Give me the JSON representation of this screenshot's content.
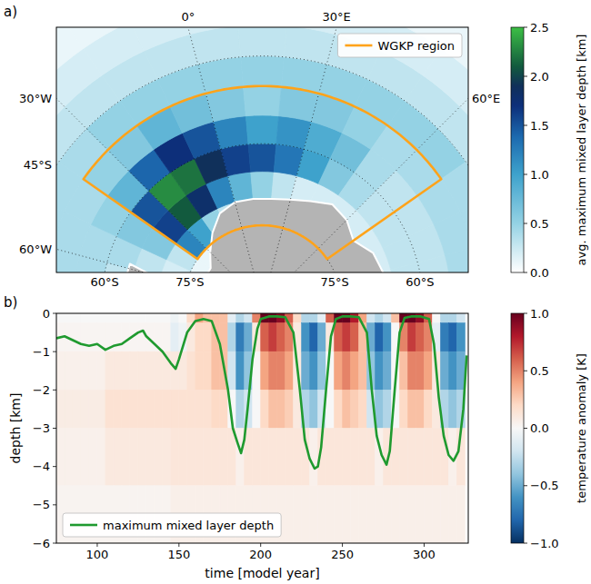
{
  "chart_data": [
    {
      "type": "map",
      "panel_label": "a)",
      "lon_ticks": [
        {
          "value": -60,
          "label": "60°W"
        },
        {
          "value": -30,
          "label": "30°W"
        },
        {
          "value": 0,
          "label": "0°"
        },
        {
          "value": 30,
          "label": "30°E"
        },
        {
          "value": 60,
          "label": "60°E"
        }
      ],
      "lat_ticks": [
        {
          "value": -45,
          "label": "45°S"
        },
        {
          "value": -60,
          "label": "60°S"
        },
        {
          "value": -75,
          "label": "75°S"
        }
      ],
      "region": {
        "name": "WGKP region",
        "color": "#ffa31a",
        "lon": [
          -40,
          70
        ],
        "lat": [
          -75,
          -50
        ]
      },
      "legend": "upper right",
      "coastline": {
        "lon": [
          -90,
          -80,
          -70,
          -65,
          -62,
          -58,
          -60,
          -62,
          -60,
          -50,
          -40,
          -30,
          -20,
          -10,
          0,
          10,
          20,
          30,
          40,
          50,
          60,
          70,
          80,
          90,
          100,
          110
        ],
        "lat": [
          -73,
          -73,
          -72,
          -68,
          -64,
          -64,
          -68,
          -73,
          -75,
          -78,
          -78,
          -76,
          -73.5,
          -71,
          -70,
          -70,
          -70,
          -69.5,
          -68.5,
          -67,
          -67.5,
          -69,
          -67,
          -66.5,
          -66,
          -66
        ]
      },
      "cells": {
        "lon_edges": [
          -70,
          -60,
          -50,
          -40,
          -30,
          -20,
          -10,
          0,
          10,
          20,
          30,
          40,
          50,
          60,
          70,
          80,
          90,
          100
        ],
        "lat_edges": [
          -85,
          -80,
          -75,
          -70,
          -65,
          -60,
          -55,
          -50,
          -45,
          -40,
          -35,
          -30,
          -25
        ],
        "values": [
          [
            0,
            0,
            0,
            0,
            0,
            0,
            0,
            0,
            0,
            0,
            0,
            0,
            0,
            0,
            0,
            0,
            0
          ],
          [
            0.1,
            0.1,
            0.1,
            0.1,
            0.1,
            0.1,
            0.1,
            0.1,
            0.1,
            0.1,
            0.1,
            0.1,
            0.1,
            0.1,
            0.1,
            0.1,
            0.1
          ],
          [
            0.2,
            0.2,
            0.3,
            1.2,
            1.0,
            0.5,
            0.3,
            0.2,
            0.1,
            0.1,
            0.1,
            0.1,
            0.1,
            0.1,
            0.1,
            0.1,
            0.1
          ],
          [
            0.3,
            0.3,
            0.6,
            1.6,
            2.1,
            1.8,
            1.2,
            0.8,
            0.5,
            0.3,
            0.2,
            0.2,
            0.2,
            0.2,
            0.2,
            0.2,
            0.2
          ],
          [
            0.3,
            0.4,
            0.6,
            1.5,
            2.3,
            2.2,
            1.9,
            1.6,
            1.5,
            1.3,
            1.0,
            0.6,
            0.4,
            0.3,
            0.3,
            0.3,
            0.3
          ],
          [
            0.4,
            0.4,
            0.5,
            0.8,
            1.4,
            1.7,
            1.5,
            1.2,
            1.0,
            1.1,
            0.9,
            0.7,
            0.4,
            0.3,
            0.3,
            0.3,
            0.3
          ],
          [
            0.4,
            0.4,
            0.4,
            0.5,
            0.6,
            0.8,
            0.7,
            0.6,
            0.5,
            0.6,
            0.6,
            0.5,
            0.4,
            0.4,
            0.4,
            0.4,
            0.4
          ],
          [
            0.4,
            0.4,
            0.4,
            0.4,
            0.5,
            0.5,
            0.5,
            0.5,
            0.5,
            0.5,
            0.5,
            0.5,
            0.5,
            0.5,
            0.4,
            0.4,
            0.4
          ],
          [
            0.3,
            0.3,
            0.3,
            0.3,
            0.3,
            0.3,
            0.3,
            0.3,
            0.3,
            0.3,
            0.3,
            0.3,
            0.3,
            0.3,
            0.3,
            0.3,
            0.3
          ],
          [
            0.2,
            0.2,
            0.2,
            0.2,
            0.2,
            0.2,
            0.2,
            0.2,
            0.2,
            0.2,
            0.2,
            0.2,
            0.2,
            0.2,
            0.2,
            0.2,
            0.2
          ],
          [
            0.1,
            0.1,
            0.1,
            0.1,
            0.1,
            0.1,
            0.1,
            0.1,
            0.1,
            0.1,
            0.1,
            0.1,
            0.1,
            0.1,
            0.1,
            0.1,
            0.1
          ],
          [
            0.1,
            0.1,
            0.1,
            0.1,
            0.1,
            0.1,
            0.1,
            0.1,
            0.1,
            0.1,
            0.1,
            0.1,
            0.1,
            0.1,
            0.1,
            0.1,
            0.1
          ]
        ]
      },
      "colorbar": {
        "label": "avg. maximum mixed layer depth [km]",
        "range": [
          0,
          2.5
        ],
        "ticks": [
          {
            "value": 0,
            "label": "0.0"
          },
          {
            "value": 0.5,
            "label": "0.5"
          },
          {
            "value": 1,
            "label": "1.0"
          },
          {
            "value": 1.5,
            "label": "1.5"
          },
          {
            "value": 2,
            "label": "2.0"
          },
          {
            "value": 2.5,
            "label": "2.5"
          }
        ]
      }
    },
    {
      "type": "heatmap",
      "panel_label": "b)",
      "x_label": "time [model year]",
      "y_label": "depth [km]",
      "xlim": [
        75,
        327
      ],
      "xticks": [
        100,
        150,
        200,
        250,
        300
      ],
      "ylim": [
        -6,
        0
      ],
      "yticks": [
        {
          "value": 0,
          "label": "0"
        },
        {
          "value": -1,
          "label": "−1"
        },
        {
          "value": -2,
          "label": "−2"
        },
        {
          "value": -3,
          "label": "−3"
        },
        {
          "value": -4,
          "label": "−4"
        },
        {
          "value": -5,
          "label": "−5"
        },
        {
          "value": -6,
          "label": "−6"
        }
      ],
      "cells": {
        "x_edges": [
          75,
          80,
          85,
          90,
          95,
          100,
          105,
          110,
          115,
          120,
          125,
          130,
          135,
          140,
          145,
          150,
          155,
          160,
          165,
          170,
          175,
          180,
          185,
          190,
          195,
          200,
          205,
          210,
          215,
          220,
          225,
          230,
          235,
          240,
          245,
          250,
          255,
          260,
          265,
          270,
          275,
          280,
          285,
          290,
          295,
          300,
          305,
          310,
          315,
          320,
          325
        ],
        "y_edges": [
          0,
          -0.25,
          -1,
          -2,
          -3,
          -4.5,
          -6
        ],
        "values": [
          [
            0,
            0,
            0,
            0,
            0,
            0,
            0,
            0,
            0,
            0,
            0,
            0,
            0,
            0,
            -0.05,
            0,
            0.2,
            0.4,
            0.3,
            0.3,
            0.3,
            -0.1,
            -0.3,
            -0.2,
            0.5,
            1.0,
            1.0,
            0.9,
            0.6,
            0.2,
            -0.3,
            -0.3,
            -0.1,
            0.6,
            1.0,
            1.0,
            0.8,
            0.4,
            -0.2,
            -0.3,
            -0.2,
            0.3,
            1.0,
            1.0,
            0.9,
            0.6,
            0.0,
            -0.3,
            -0.3,
            -0.2
          ],
          [
            0.02,
            0.02,
            0.02,
            0.02,
            0.02,
            0.02,
            0.02,
            0.02,
            0.02,
            0.02,
            0.02,
            0.02,
            0.02,
            0.02,
            -0.1,
            -0.05,
            0.1,
            0.2,
            0.2,
            0.3,
            0.3,
            -0.3,
            -0.7,
            -0.5,
            0.1,
            0.6,
            0.7,
            0.6,
            0.5,
            0.1,
            -0.6,
            -0.8,
            -0.5,
            0.1,
            0.6,
            0.7,
            0.6,
            0.3,
            -0.5,
            -0.8,
            -0.6,
            0.0,
            0.5,
            0.7,
            0.6,
            0.5,
            -0.1,
            -0.7,
            -0.8,
            -0.6
          ],
          [
            0.05,
            0.05,
            0.05,
            0.05,
            0.05,
            0.05,
            0.1,
            0.1,
            0.1,
            0.1,
            0.1,
            0.1,
            0.1,
            0.1,
            0.1,
            0.1,
            0.15,
            0.2,
            0.2,
            0.3,
            0.3,
            -0.2,
            -0.6,
            -0.4,
            0.0,
            0.4,
            0.5,
            0.5,
            0.4,
            0.1,
            -0.5,
            -0.6,
            -0.4,
            0.0,
            0.4,
            0.5,
            0.4,
            0.3,
            -0.4,
            -0.6,
            -0.5,
            0.0,
            0.3,
            0.5,
            0.5,
            0.4,
            0.1,
            -0.5,
            -0.6,
            -0.5
          ],
          [
            0.08,
            0.08,
            0.08,
            0.08,
            0.08,
            0.08,
            0.15,
            0.15,
            0.15,
            0.15,
            0.15,
            0.15,
            0.15,
            0.15,
            0.15,
            0.15,
            0.15,
            0.15,
            0.15,
            0.2,
            0.2,
            0.0,
            -0.3,
            -0.2,
            0.0,
            0.2,
            0.3,
            0.3,
            0.25,
            0.1,
            -0.3,
            -0.4,
            -0.2,
            0.0,
            0.2,
            0.3,
            0.25,
            0.2,
            -0.2,
            -0.4,
            -0.3,
            0.0,
            0.2,
            0.3,
            0.3,
            0.2,
            0.1,
            -0.3,
            -0.4,
            -0.3
          ],
          [
            0.05,
            0.05,
            0.05,
            0.05,
            0.05,
            0.05,
            0.1,
            0.1,
            0.1,
            0.1,
            0.1,
            0.1,
            0.1,
            0.1,
            0.12,
            0.12,
            0.12,
            0.12,
            0.12,
            0.12,
            0.12,
            0.12,
            0.05,
            0.12,
            0.12,
            0.12,
            0.12,
            0.12,
            0.12,
            0.12,
            0.12,
            0.05,
            0.12,
            0.12,
            0.12,
            0.12,
            0.12,
            0.12,
            0.12,
            0.05,
            0.12,
            0.12,
            0.12,
            0.12,
            0.12,
            0.12,
            0.12,
            0.12,
            0.05,
            0.12
          ],
          [
            0.03,
            0.03,
            0.03,
            0.03,
            0.03,
            0.03,
            0.03,
            0.03,
            0.03,
            0.03,
            0.03,
            0.03,
            0.03,
            0.03,
            0.06,
            0.06,
            0.06,
            0.06,
            0.06,
            0.06,
            0.06,
            0.06,
            0.06,
            0.06,
            0.06,
            0.06,
            0.06,
            0.06,
            0.06,
            0.06,
            0.06,
            0.06,
            0.06,
            0.06,
            0.06,
            0.06,
            0.06,
            0.06,
            0.06,
            0.06,
            0.06,
            0.06,
            0.06,
            0.06,
            0.06,
            0.06,
            0.06,
            0.06,
            0.06,
            0.06
          ]
        ]
      },
      "colorbar": {
        "label": "temperature anomaly [K]",
        "range": [
          -1,
          1
        ],
        "ticks": [
          {
            "value": -1,
            "label": "−1.0"
          },
          {
            "value": -0.5,
            "label": "−0.5"
          },
          {
            "value": 0,
            "label": "0.0"
          },
          {
            "value": 0.5,
            "label": "0.5"
          },
          {
            "value": 1,
            "label": "1.0"
          }
        ]
      },
      "series": [
        {
          "name": "maximum mixed layer depth",
          "type": "line",
          "color": "#1f9a2f",
          "x": [
            75,
            80,
            85,
            90,
            95,
            100,
            105,
            110,
            115,
            120,
            125,
            128,
            130,
            135,
            140,
            145,
            148,
            150,
            155,
            160,
            165,
            170,
            175,
            180,
            183,
            186,
            188,
            190,
            192,
            195,
            198,
            200,
            205,
            210,
            215,
            220,
            224,
            227,
            230,
            233,
            235,
            237,
            240,
            243,
            246,
            250,
            255,
            260,
            265,
            268,
            271,
            274,
            277,
            279,
            282,
            285,
            288,
            292,
            298,
            303,
            306,
            309,
            312,
            315,
            318,
            321,
            324,
            326
          ],
          "values": [
            -0.65,
            -0.6,
            -0.7,
            -0.8,
            -0.85,
            -0.8,
            -0.95,
            -0.85,
            -0.8,
            -0.65,
            -0.5,
            -0.45,
            -0.6,
            -0.8,
            -1.0,
            -1.3,
            -1.45,
            -1.2,
            -0.5,
            -0.2,
            -0.15,
            -0.2,
            -0.8,
            -2.0,
            -3.0,
            -3.4,
            -3.65,
            -3.3,
            -2.5,
            -1.2,
            -0.4,
            -0.15,
            -0.08,
            -0.08,
            -0.1,
            -0.5,
            -2.0,
            -3.3,
            -3.8,
            -4.05,
            -4.0,
            -3.5,
            -2.0,
            -0.6,
            -0.15,
            -0.08,
            -0.08,
            -0.1,
            -0.5,
            -2.0,
            -3.2,
            -3.7,
            -3.95,
            -3.6,
            -2.0,
            -0.5,
            -0.12,
            -0.08,
            -0.08,
            -0.15,
            -0.8,
            -2.2,
            -3.2,
            -3.7,
            -3.85,
            -3.6,
            -2.5,
            -1.1
          ]
        }
      ],
      "legend": "lower left"
    }
  ]
}
